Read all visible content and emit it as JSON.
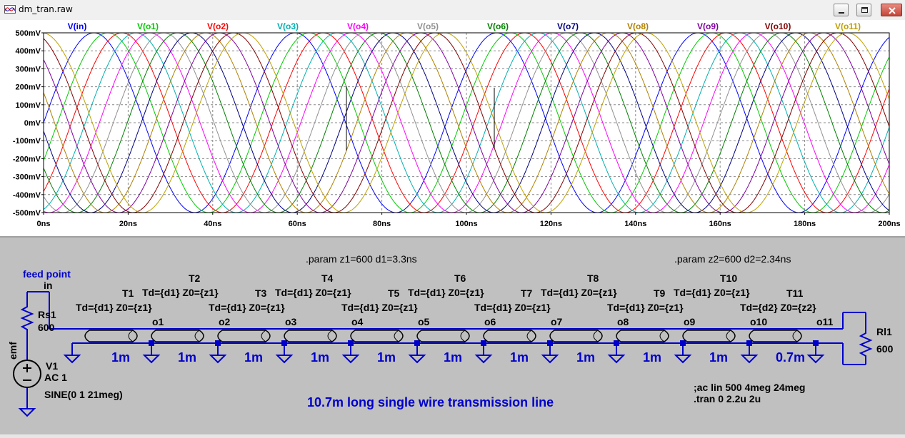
{
  "window": {
    "title": "dm_tran.raw"
  },
  "plot": {
    "traces": [
      {
        "name": "V(in)",
        "color": "#0000ff"
      },
      {
        "name": "V(o1)",
        "color": "#00cc00"
      },
      {
        "name": "V(o2)",
        "color": "#ff0000"
      },
      {
        "name": "V(o3)",
        "color": "#00b0b0"
      },
      {
        "name": "V(o4)",
        "color": "#ff00ff"
      },
      {
        "name": "V(o5)",
        "color": "#909090"
      },
      {
        "name": "V(o6)",
        "color": "#008000"
      },
      {
        "name": "V(o7)",
        "color": "#000080"
      },
      {
        "name": "V(o8)",
        "color": "#b08000"
      },
      {
        "name": "V(o9)",
        "color": "#8000a0"
      },
      {
        "name": "V(o10)",
        "color": "#800000"
      },
      {
        "name": "V(o11)",
        "color": "#c0a000"
      }
    ],
    "y_ticks": [
      "500mV",
      "400mV",
      "300mV",
      "200mV",
      "100mV",
      "0mV",
      "-100mV",
      "-200mV",
      "-300mV",
      "-400mV",
      "-500mV"
    ],
    "x_ticks": [
      "0ns",
      "20ns",
      "40ns",
      "60ns",
      "80ns",
      "100ns",
      "120ns",
      "140ns",
      "160ns",
      "180ns",
      "200ns"
    ],
    "ylim": [
      -0.5,
      0.5
    ],
    "xlim": [
      0,
      200
    ],
    "freq_mhz": 21,
    "delay_ns_per_section": [
      3.3,
      3.3,
      3.3,
      3.3,
      3.3,
      3.3,
      3.3,
      3.3,
      3.3,
      3.3,
      2.34
    ]
  },
  "schematic": {
    "param1": ".param z1=600 d1=3.3ns",
    "param2": ".param z2=600 d2=2.34ns",
    "feed_point": "feed point",
    "in_label": "in",
    "rs1_name": "Rs1",
    "rs1_value": "600",
    "v1_name": "V1",
    "v1_ac": "AC 1",
    "v1_sine": "SINE(0 1 21meg)",
    "emf_label": "emf",
    "rl1_name": "Rl1",
    "rl1_value": "600",
    "ac_directive": ";ac lin 500 4meg 24meg",
    "tran_directive": ".tran 0 2.2u 2u",
    "caption": "10.7m long single wire transmission line",
    "lines": [
      {
        "name": "T1",
        "td": "Td={d1} Z0={z1}",
        "node": "o1",
        "len": "1m"
      },
      {
        "name": "T2",
        "td": "Td={d1} Z0={z1}",
        "node": "o2",
        "len": "1m"
      },
      {
        "name": "T3",
        "td": "Td={d1} Z0={z1}",
        "node": "o3",
        "len": "1m"
      },
      {
        "name": "T4",
        "td": "Td={d1} Z0={z1}",
        "node": "o4",
        "len": "1m"
      },
      {
        "name": "T5",
        "td": "Td={d1} Z0={z1}",
        "node": "o5",
        "len": "1m"
      },
      {
        "name": "T6",
        "td": "Td={d1} Z0={z1}",
        "node": "o6",
        "len": "1m"
      },
      {
        "name": "T7",
        "td": "Td={d1} Z0={z1}",
        "node": "o7",
        "len": "1m"
      },
      {
        "name": "T8",
        "td": "Td={d1} Z0={z1}",
        "node": "o8",
        "len": "1m"
      },
      {
        "name": "T9",
        "td": "Td={d1} Z0={z1}",
        "node": "o9",
        "len": "1m"
      },
      {
        "name": "T10",
        "td": "Td={d1} Z0={z1}",
        "node": "o10",
        "len": "1m"
      },
      {
        "name": "T11",
        "td": "Td={d2} Z0={z2}",
        "node": "o11",
        "len": "0.7m"
      }
    ]
  }
}
